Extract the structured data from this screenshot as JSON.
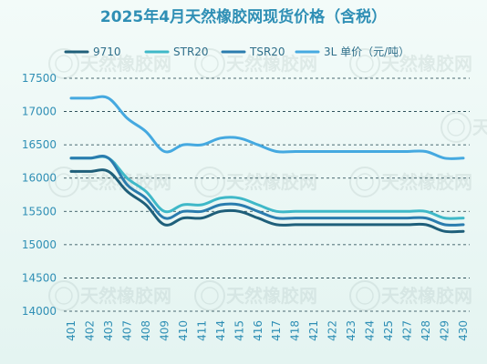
{
  "chart_data": {
    "type": "line",
    "title": "2025年4月天然橡胶网现货价格（含税）",
    "xlabel": "",
    "ylabel": "",
    "ylim": [
      14000,
      17500
    ],
    "yticks": [
      14000,
      14500,
      15000,
      15500,
      16000,
      16500,
      17000,
      17500
    ],
    "grid": "horizontal dashed",
    "legend_position": "top",
    "watermark": "天然橡胶网",
    "categories": [
      "401",
      "402",
      "403",
      "407",
      "408",
      "409",
      "410",
      "411",
      "414",
      "415",
      "416",
      "417",
      "418",
      "421",
      "422",
      "423",
      "424",
      "425",
      "427",
      "428",
      "429",
      "430"
    ],
    "series": [
      {
        "name": "9710",
        "color": "#1f5f7a",
        "values": [
          16100,
          16100,
          16100,
          15800,
          15600,
          15300,
          15400,
          15400,
          15500,
          15500,
          15400,
          15300,
          15300,
          15300,
          15300,
          15300,
          15300,
          15300,
          15300,
          15300,
          15200,
          15200
        ]
      },
      {
        "name": "STR20",
        "color": "#3fb8c8",
        "values": [
          16300,
          16300,
          16300,
          16000,
          15800,
          15500,
          15600,
          15600,
          15700,
          15700,
          15600,
          15500,
          15500,
          15500,
          15500,
          15500,
          15500,
          15500,
          15500,
          15500,
          15400,
          15400
        ]
      },
      {
        "name": "TSR20",
        "color": "#2a7cae",
        "values": [
          16300,
          16300,
          16300,
          15900,
          15700,
          15400,
          15500,
          15500,
          15600,
          15600,
          15500,
          15400,
          15400,
          15400,
          15400,
          15400,
          15400,
          15400,
          15400,
          15400,
          15300,
          15300
        ]
      },
      {
        "name": "3L 单价（元/吨）",
        "color": "#45a9e0",
        "values": [
          17200,
          17200,
          17200,
          16900,
          16700,
          16400,
          16500,
          16500,
          16600,
          16600,
          16500,
          16400,
          16400,
          16400,
          16400,
          16400,
          16400,
          16400,
          16400,
          16400,
          16300,
          16300
        ]
      }
    ]
  }
}
